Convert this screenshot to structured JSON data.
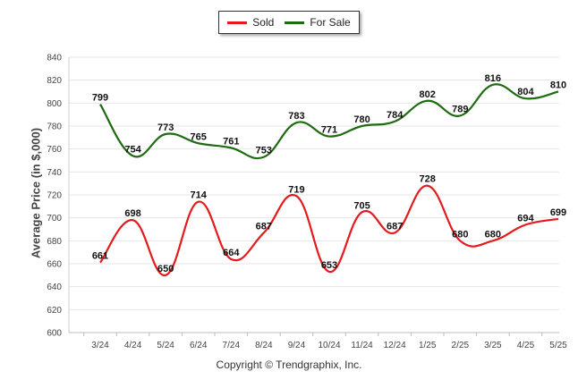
{
  "chart_data": {
    "type": "line",
    "categories": [
      "3/24",
      "4/24",
      "5/24",
      "6/24",
      "7/24",
      "8/24",
      "9/24",
      "10/24",
      "11/24",
      "12/24",
      "1/25",
      "2/25",
      "3/25",
      "4/25",
      "5/25"
    ],
    "series": [
      {
        "name": "Sold",
        "color": "#e41a1c",
        "values": [
          661,
          698,
          650,
          714,
          664,
          687,
          719,
          653,
          705,
          687,
          728,
          680,
          680,
          694,
          699
        ]
      },
      {
        "name": "For Sale",
        "color": "#1e6b12",
        "values": [
          799,
          754,
          773,
          765,
          761,
          753,
          783,
          771,
          780,
          784,
          802,
          789,
          816,
          804,
          810
        ]
      }
    ],
    "ylabel": "Average Price (in $,000)",
    "xlabel": "",
    "ylim": [
      600,
      840
    ],
    "yticks": [
      600,
      620,
      640,
      660,
      680,
      700,
      720,
      740,
      760,
      780,
      800,
      820,
      840
    ],
    "grid": true,
    "legend_position": "top-center",
    "smooth": true
  },
  "footer": {
    "copyright": "Copyright © Trendgraphix, Inc."
  }
}
